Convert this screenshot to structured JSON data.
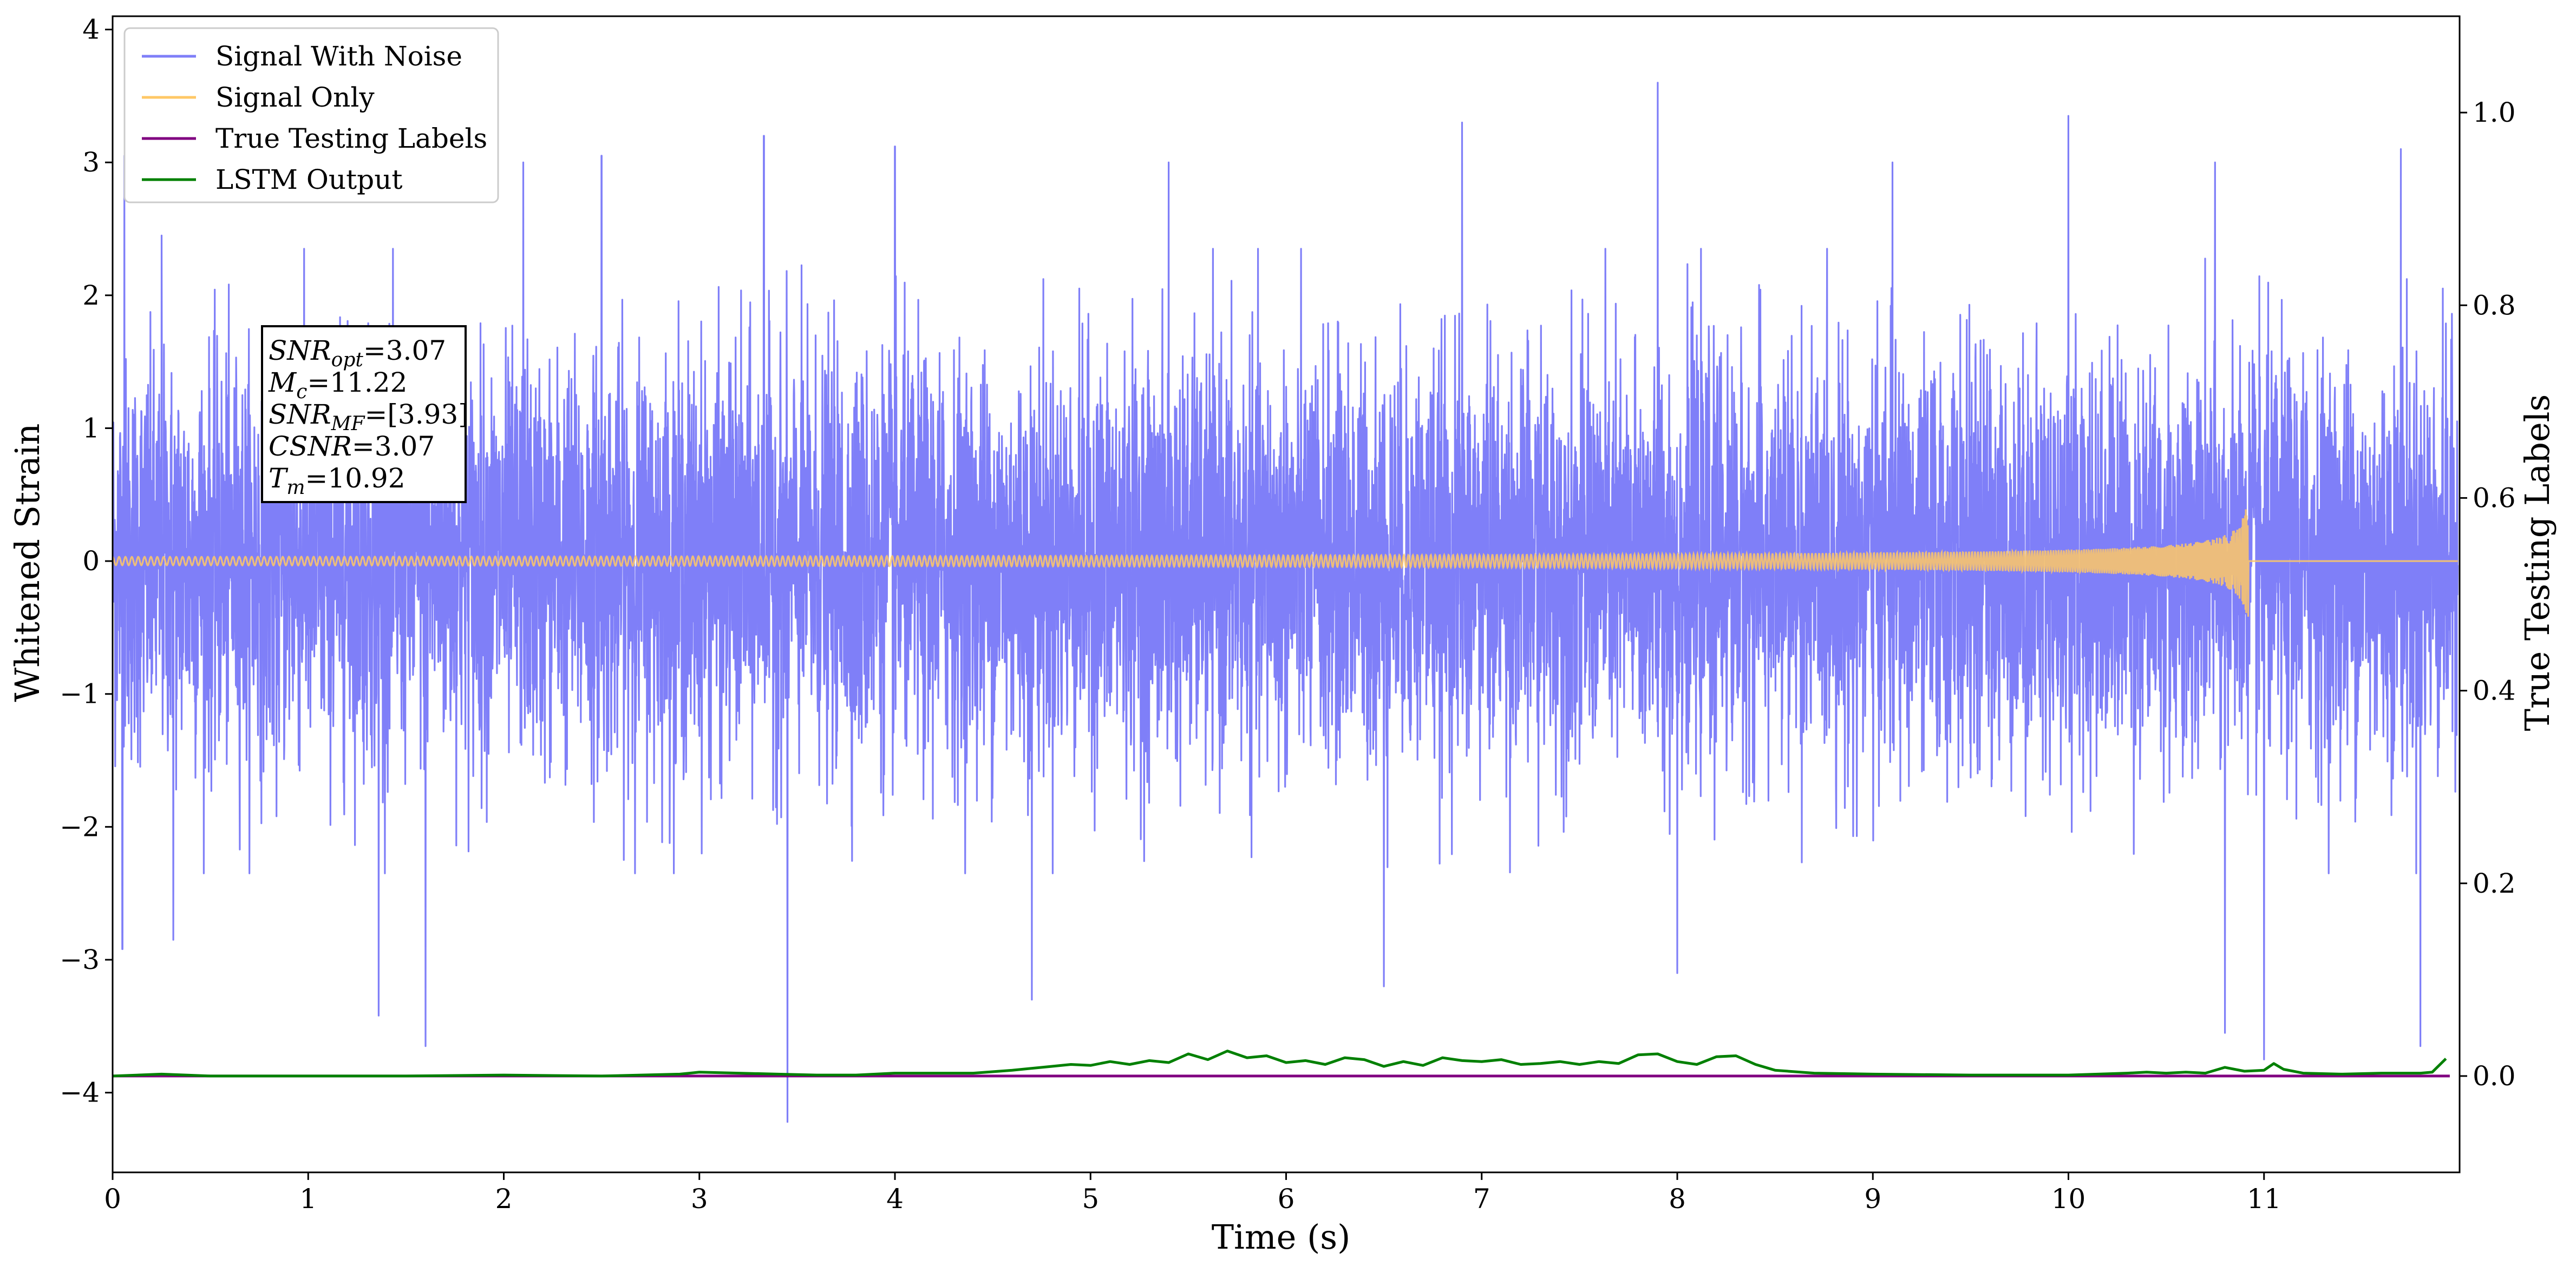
{
  "chart_data": {
    "type": "line",
    "xlabel": "Time (s)",
    "ylabel": "Whitened Strain",
    "y2label": "True Testing Labels",
    "xlim": [
      0,
      12
    ],
    "ylim": [
      -4.6,
      4.1
    ],
    "y2lim": [
      -0.1,
      1.1
    ],
    "xticks": [
      0,
      1,
      2,
      3,
      4,
      5,
      6,
      7,
      8,
      9,
      10,
      11
    ],
    "yticks": [
      -4,
      -3,
      -2,
      -1,
      0,
      1,
      2,
      3,
      4
    ],
    "y2ticks": [
      0.0,
      0.2,
      0.4,
      0.6,
      0.8,
      1.0
    ],
    "legend_position": "top-left",
    "series": [
      {
        "name": "Signal With Noise",
        "color": "#7f7ff8",
        "axis": "left",
        "description_values": {
          "band_min_typical": -1.5,
          "band_max_typical": 1.5,
          "spikes": [
            {
              "x": 0.06,
              "y": 3.05
            },
            {
              "x": 0.05,
              "y": -2.92
            },
            {
              "x": 0.25,
              "y": 2.45
            },
            {
              "x": 0.31,
              "y": -2.85
            },
            {
              "x": 1.36,
              "y": -3.42
            },
            {
              "x": 1.6,
              "y": -3.65
            },
            {
              "x": 2.1,
              "y": 3.0
            },
            {
              "x": 2.5,
              "y": 3.05
            },
            {
              "x": 3.33,
              "y": 3.2
            },
            {
              "x": 3.45,
              "y": -4.22
            },
            {
              "x": 4.0,
              "y": 3.12
            },
            {
              "x": 4.7,
              "y": -3.3
            },
            {
              "x": 5.4,
              "y": 3.0
            },
            {
              "x": 6.5,
              "y": -3.2
            },
            {
              "x": 6.9,
              "y": 3.3
            },
            {
              "x": 7.9,
              "y": 3.6
            },
            {
              "x": 8.0,
              "y": -3.1
            },
            {
              "x": 9.1,
              "y": 3.0
            },
            {
              "x": 10.0,
              "y": 3.35
            },
            {
              "x": 10.75,
              "y": 3.0
            },
            {
              "x": 10.8,
              "y": -3.55
            },
            {
              "x": 11.0,
              "y": -3.75
            },
            {
              "x": 11.7,
              "y": 3.1
            },
            {
              "x": 11.8,
              "y": -3.65
            }
          ]
        }
      },
      {
        "name": "Signal Only",
        "color": "#ffc866",
        "axis": "left",
        "description_values": {
          "chirp_end_time": 10.92,
          "peak_amplitude": 0.42,
          "amplitude_at_t0": 0.02
        }
      },
      {
        "name": "True Testing Labels",
        "color": "#800080",
        "axis": "right",
        "values": [
          [
            0,
            0.0
          ],
          [
            11.95,
            0.0
          ]
        ]
      },
      {
        "name": "LSTM Output",
        "color": "#008000",
        "axis": "right",
        "values": [
          [
            0.0,
            0.0
          ],
          [
            0.25,
            0.002
          ],
          [
            0.5,
            0.0
          ],
          [
            1.0,
            0.0
          ],
          [
            1.5,
            0.0
          ],
          [
            2.0,
            0.001
          ],
          [
            2.5,
            0.0
          ],
          [
            2.9,
            0.002
          ],
          [
            3.0,
            0.004
          ],
          [
            3.2,
            0.003
          ],
          [
            3.4,
            0.002
          ],
          [
            3.6,
            0.001
          ],
          [
            3.8,
            0.001
          ],
          [
            4.0,
            0.003
          ],
          [
            4.2,
            0.003
          ],
          [
            4.4,
            0.003
          ],
          [
            4.6,
            0.006
          ],
          [
            4.8,
            0.01
          ],
          [
            4.9,
            0.012
          ],
          [
            5.0,
            0.011
          ],
          [
            5.1,
            0.015
          ],
          [
            5.2,
            0.012
          ],
          [
            5.3,
            0.016
          ],
          [
            5.4,
            0.014
          ],
          [
            5.5,
            0.023
          ],
          [
            5.6,
            0.017
          ],
          [
            5.7,
            0.026
          ],
          [
            5.8,
            0.019
          ],
          [
            5.9,
            0.021
          ],
          [
            6.0,
            0.014
          ],
          [
            6.1,
            0.016
          ],
          [
            6.2,
            0.012
          ],
          [
            6.3,
            0.019
          ],
          [
            6.4,
            0.017
          ],
          [
            6.5,
            0.01
          ],
          [
            6.6,
            0.015
          ],
          [
            6.7,
            0.011
          ],
          [
            6.8,
            0.019
          ],
          [
            6.9,
            0.016
          ],
          [
            7.0,
            0.015
          ],
          [
            7.1,
            0.017
          ],
          [
            7.2,
            0.012
          ],
          [
            7.3,
            0.013
          ],
          [
            7.4,
            0.015
          ],
          [
            7.5,
            0.012
          ],
          [
            7.6,
            0.015
          ],
          [
            7.7,
            0.013
          ],
          [
            7.8,
            0.022
          ],
          [
            7.9,
            0.023
          ],
          [
            8.0,
            0.015
          ],
          [
            8.1,
            0.012
          ],
          [
            8.2,
            0.02
          ],
          [
            8.3,
            0.021
          ],
          [
            8.4,
            0.012
          ],
          [
            8.5,
            0.006
          ],
          [
            8.7,
            0.003
          ],
          [
            9.0,
            0.002
          ],
          [
            9.5,
            0.001
          ],
          [
            10.0,
            0.001
          ],
          [
            10.3,
            0.003
          ],
          [
            10.4,
            0.004
          ],
          [
            10.5,
            0.003
          ],
          [
            10.6,
            0.004
          ],
          [
            10.7,
            0.003
          ],
          [
            10.8,
            0.009
          ],
          [
            10.9,
            0.005
          ],
          [
            11.0,
            0.006
          ],
          [
            11.05,
            0.013
          ],
          [
            11.1,
            0.007
          ],
          [
            11.2,
            0.003
          ],
          [
            11.4,
            0.002
          ],
          [
            11.6,
            0.003
          ],
          [
            11.8,
            0.003
          ],
          [
            11.86,
            0.004
          ],
          [
            11.93,
            0.018
          ]
        ]
      }
    ],
    "annotation": {
      "lines": [
        {
          "sym": "SNR",
          "sub": "opt",
          "rest": "=3.07"
        },
        {
          "sym": "M",
          "sub": "c",
          "rest": "=11.22"
        },
        {
          "sym": "SNR",
          "sub": "MF",
          "rest": "=[3.93]"
        },
        {
          "sym": "CSNR",
          "sub": "",
          "rest": "=3.07"
        },
        {
          "sym": "T",
          "sub": "m",
          "rest": "=10.92"
        }
      ]
    },
    "legend": [
      "Signal With Noise",
      "Signal Only",
      "True Testing Labels",
      "LSTM Output"
    ]
  }
}
